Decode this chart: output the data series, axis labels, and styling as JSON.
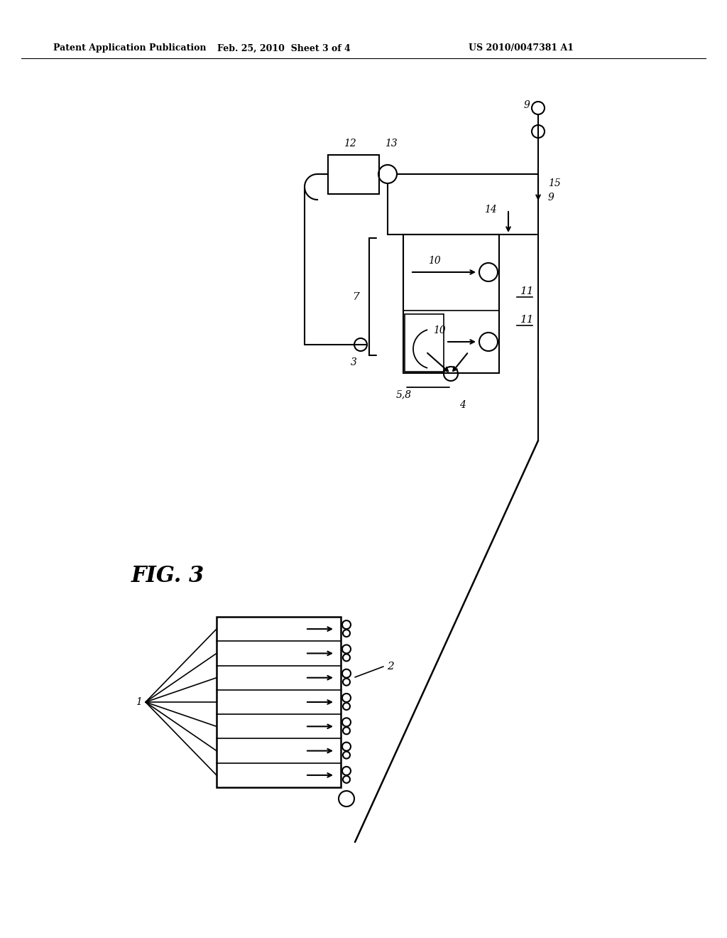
{
  "bg_color": "#ffffff",
  "line_color": "#000000",
  "header_left": "Patent Application Publication",
  "header_mid": "Feb. 25, 2010  Sheet 3 of 4",
  "header_right": "US 2010/0047381 A1",
  "fig_label": "FIG. 3"
}
